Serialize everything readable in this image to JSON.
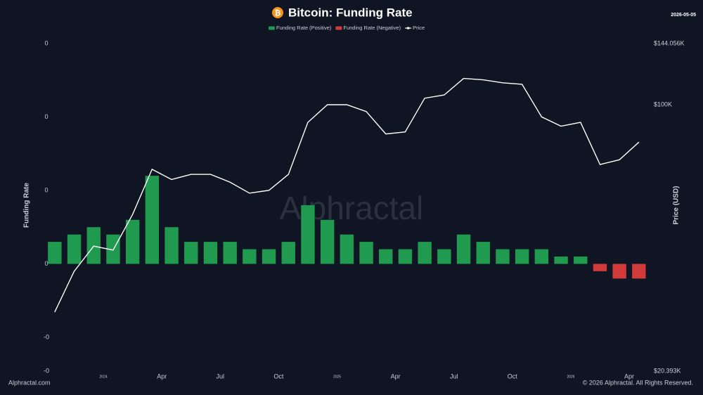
{
  "chart_data": {
    "type": "bar-line",
    "title": "Bitcoin: Funding Rate",
    "date": "2026-05-05",
    "y_label": "Funding Rate",
    "y2_label": "Price (USD)",
    "watermark": "Alphractal",
    "source": "Alphractal.com",
    "copyright": "© 2026 Alphractal. All Rights Reserved.",
    "x": [
      "2023-10",
      "2023-11",
      "2023-12",
      "2024-01",
      "2024-02",
      "2024-03",
      "2024-04",
      "2024-05",
      "2024-06",
      "2024-07",
      "2024-08",
      "2024-09",
      "2024-10",
      "2024-11",
      "2024-12",
      "2025-01",
      "2025-02",
      "2025-03",
      "2025-04",
      "2025-05",
      "2025-06",
      "2025-07",
      "2025-08",
      "2025-09",
      "2025-10",
      "2025-11",
      "2025-12",
      "2026-01",
      "2026-02",
      "2026-03",
      "2026-04"
    ],
    "series": [
      {
        "name": "Funding Rate (Positive)",
        "color": "#1f9a4e",
        "values": [
          0.003,
          0.004,
          0.005,
          0.004,
          0.006,
          0.012,
          0.005,
          0.003,
          0.003,
          0.003,
          0.002,
          0.002,
          0.003,
          0.008,
          0.006,
          0.004,
          0.003,
          0.002,
          0.002,
          0.003,
          0.002,
          0.004,
          0.003,
          0.002,
          0.002,
          0.002,
          0.001,
          0.001,
          null,
          null,
          null
        ]
      },
      {
        "name": "Funding Rate (Negative)",
        "color": "#d03a3a",
        "values": [
          null,
          null,
          null,
          null,
          null,
          null,
          null,
          null,
          null,
          null,
          null,
          null,
          null,
          null,
          null,
          null,
          null,
          null,
          null,
          null,
          null,
          null,
          null,
          null,
          null,
          null,
          null,
          null,
          -0.001,
          -0.002,
          -0.002
        ]
      },
      {
        "name": "Price",
        "color": "#ffffff",
        "axis": "y2",
        "values": [
          29000,
          37000,
          43000,
          42000,
          52000,
          68000,
          64000,
          66000,
          66000,
          63000,
          59000,
          60000,
          66000,
          90000,
          100000,
          100000,
          96000,
          84000,
          85000,
          104000,
          106000,
          117000,
          116000,
          114000,
          113000,
          93000,
          88000,
          90000,
          70000,
          72000,
          80000
        ]
      }
    ],
    "ylim": [
      -0.0146,
      0.03
    ],
    "yticks": [
      {
        "value": 0.03,
        "label": "0"
      },
      {
        "value": 0.02,
        "label": "0"
      },
      {
        "value": 0.01,
        "label": "0"
      },
      0,
      {
        "value": -0.01,
        "label": "-0"
      },
      {
        "value": -0.0146,
        "label": "-0"
      }
    ],
    "y2lim": [
      20393,
      144056
    ],
    "y2scale": "log",
    "y2ticks": [
      {
        "value": 144056,
        "label": "$144.056K"
      },
      {
        "value": 100000,
        "label": "$100K"
      },
      {
        "value": 20393,
        "label": "$20.393K"
      }
    ],
    "xticks": [
      {
        "value": "2024-01",
        "label": "2024"
      },
      {
        "value": "2024-04",
        "label": "Apr"
      },
      {
        "value": "2024-07",
        "label": "Jul"
      },
      {
        "value": "2024-10",
        "label": "Oct"
      },
      {
        "value": "2025-01",
        "label": "2025"
      },
      {
        "value": "2025-04",
        "label": "Apr"
      },
      {
        "value": "2025-07",
        "label": "Jul"
      },
      {
        "value": "2025-10",
        "label": "Oct"
      },
      {
        "value": "2026-01",
        "label": "2026"
      },
      {
        "value": "2026-04",
        "label": "Apr"
      }
    ]
  }
}
